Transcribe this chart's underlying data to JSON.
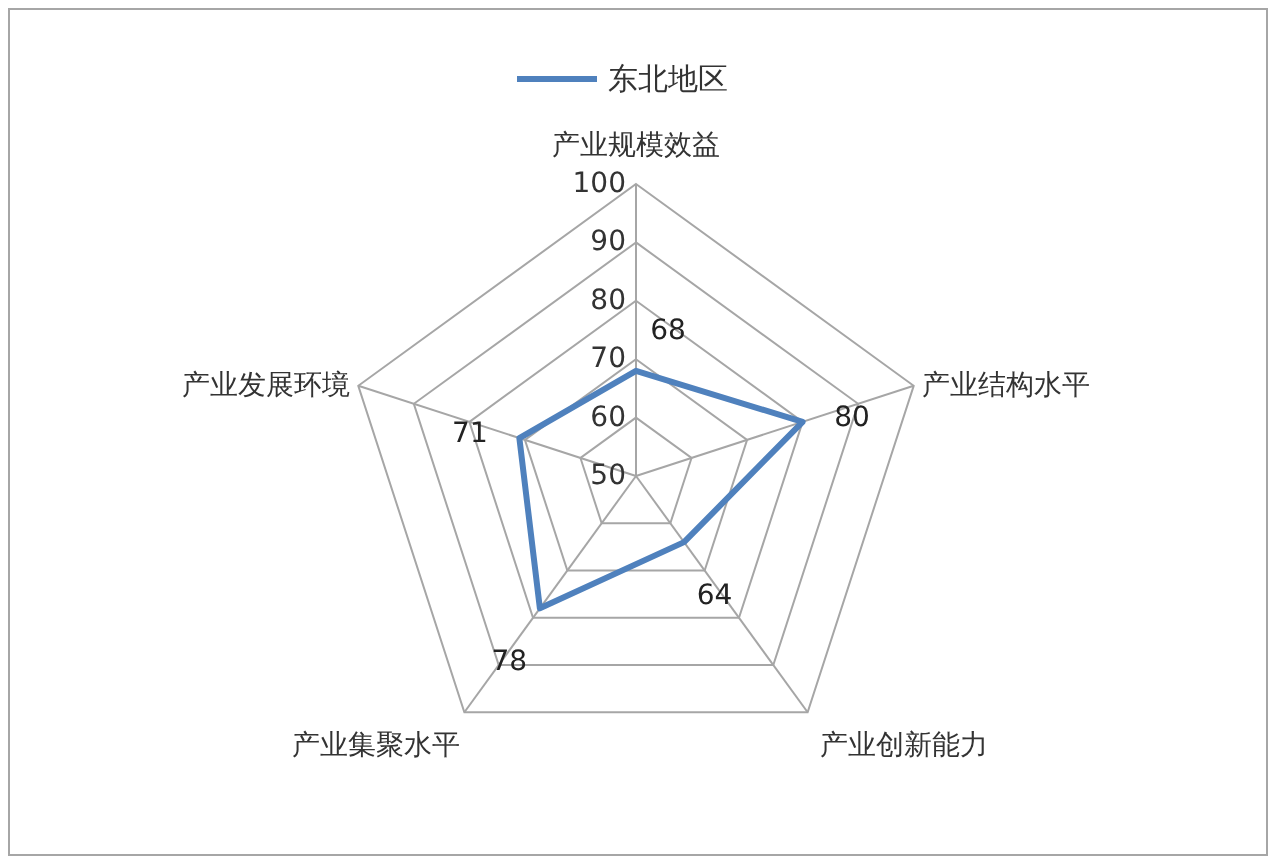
{
  "chart_data": {
    "type": "radar",
    "legend": "top",
    "grid": true,
    "data_labels": true,
    "categories": [
      "产业规模效益",
      "产业结构水平",
      "产业创新能力",
      "产业集聚水平",
      "产业发展环境"
    ],
    "series": [
      {
        "name": "东北地区",
        "color": "#4f81bd",
        "values": [
          68,
          80,
          64,
          78,
          71
        ]
      }
    ],
    "ylim": [
      50,
      100
    ],
    "yticks": [
      50,
      60,
      70,
      80,
      90,
      100
    ]
  }
}
